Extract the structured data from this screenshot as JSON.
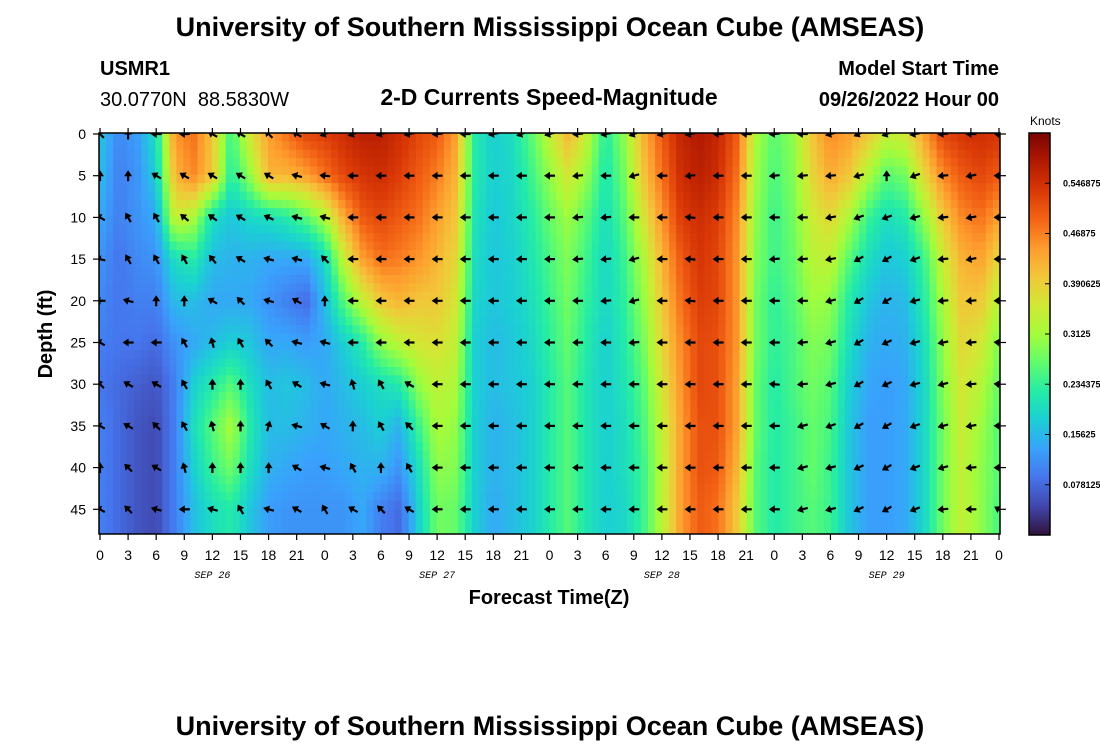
{
  "header": {
    "title": "University of Southern Mississippi Ocean Cube (AMSEAS)",
    "station_id": "USMR1",
    "station_coords": "30.0770N  88.5830W",
    "subtitle": "2-D Currents Speed-Magnitude",
    "model_start_label": "Model Start Time",
    "model_start_value": "09/26/2022 Hour 00"
  },
  "footer": {
    "title": "University of Southern Mississippi Ocean Cube (AMSEAS)"
  },
  "colors": {
    "palette": [
      "#30123b",
      "#4145ab",
      "#4675ed",
      "#39a2fc",
      "#1bcfd4",
      "#24eca6",
      "#61fc6c",
      "#a4fc3b",
      "#d1e834",
      "#f3c63a",
      "#fe9b2d",
      "#f36315",
      "#d93806",
      "#b11901",
      "#7a0402"
    ],
    "arrow": "#000000"
  },
  "chart_data": {
    "type": "heatmap",
    "subtype": "depth-time current speed section with direction vectors",
    "xlabel": "Forecast Time(Z)",
    "ylabel": "Depth (ft)",
    "x_range_hours": [
      0,
      96
    ],
    "x_ticks": [
      "0",
      "3",
      "6",
      "9",
      "12",
      "15",
      "18",
      "21",
      "0",
      "3",
      "6",
      "9",
      "12",
      "15",
      "18",
      "21",
      "0",
      "3",
      "6",
      "9",
      "12",
      "15",
      "18",
      "21",
      "0",
      "3",
      "6",
      "9",
      "12",
      "15",
      "18",
      "21",
      "0"
    ],
    "date_labels": [
      {
        "label": "SEP 26",
        "hour": 12
      },
      {
        "label": "SEP 27",
        "hour": 36
      },
      {
        "label": "SEP 28",
        "hour": 60
      },
      {
        "label": "SEP 29",
        "hour": 84
      }
    ],
    "y_ticks": [
      0,
      5,
      10,
      15,
      20,
      25,
      30,
      35,
      40,
      45
    ],
    "y_range_ft": [
      0,
      48
    ],
    "colorbar": {
      "unit": "Knots",
      "range": [
        0,
        0.625
      ],
      "tick_labels": [
        "0.546875",
        "0.46875",
        "0.390625",
        "0.3125",
        "0.234375",
        "0.15625",
        "0.078125"
      ],
      "tick_values": [
        0.546875,
        0.46875,
        0.390625,
        0.3125,
        0.234375,
        0.15625,
        0.078125
      ]
    },
    "field_hours": [
      0,
      2,
      4,
      6,
      8,
      10,
      12,
      14,
      16,
      18,
      20,
      22,
      24,
      26,
      28,
      30,
      32,
      34,
      36,
      38,
      40,
      42,
      44,
      46,
      48,
      50,
      52,
      54,
      56,
      58,
      60,
      62,
      64,
      66,
      68,
      70,
      72,
      74,
      76,
      78,
      80,
      82,
      84,
      86,
      88,
      90,
      92,
      94,
      96
    ],
    "field_depths_ft": [
      0,
      5,
      10,
      15,
      20,
      25,
      30,
      35,
      40,
      45,
      48
    ],
    "speed_knots_by_hour": [
      [
        0.17,
        0.16,
        0.14,
        0.12,
        0.11,
        0.1,
        0.09,
        0.1,
        0.1,
        0.1,
        0.1
      ],
      [
        0.11,
        0.1,
        0.1,
        0.09,
        0.09,
        0.09,
        0.08,
        0.08,
        0.08,
        0.08,
        0.08
      ],
      [
        0.13,
        0.12,
        0.12,
        0.11,
        0.1,
        0.09,
        0.07,
        0.06,
        0.06,
        0.06,
        0.06
      ],
      [
        0.2,
        0.18,
        0.14,
        0.12,
        0.1,
        0.08,
        0.06,
        0.05,
        0.05,
        0.05,
        0.05
      ],
      [
        0.45,
        0.42,
        0.35,
        0.2,
        0.16,
        0.12,
        0.1,
        0.1,
        0.1,
        0.1,
        0.1
      ],
      [
        0.48,
        0.46,
        0.32,
        0.22,
        0.16,
        0.14,
        0.18,
        0.2,
        0.18,
        0.16,
        0.16
      ],
      [
        0.4,
        0.4,
        0.2,
        0.16,
        0.14,
        0.16,
        0.22,
        0.26,
        0.24,
        0.2,
        0.2
      ],
      [
        0.24,
        0.22,
        0.17,
        0.15,
        0.14,
        0.18,
        0.26,
        0.32,
        0.28,
        0.22,
        0.22
      ],
      [
        0.36,
        0.3,
        0.19,
        0.15,
        0.14,
        0.17,
        0.2,
        0.22,
        0.2,
        0.17,
        0.17
      ],
      [
        0.44,
        0.42,
        0.2,
        0.14,
        0.12,
        0.14,
        0.16,
        0.16,
        0.15,
        0.13,
        0.13
      ],
      [
        0.48,
        0.42,
        0.22,
        0.14,
        0.1,
        0.14,
        0.17,
        0.16,
        0.14,
        0.12,
        0.12
      ],
      [
        0.52,
        0.44,
        0.26,
        0.14,
        0.08,
        0.13,
        0.16,
        0.15,
        0.13,
        0.12,
        0.12
      ],
      [
        0.53,
        0.48,
        0.32,
        0.19,
        0.16,
        0.14,
        0.14,
        0.14,
        0.13,
        0.12,
        0.12
      ],
      [
        0.55,
        0.52,
        0.43,
        0.34,
        0.26,
        0.18,
        0.16,
        0.15,
        0.14,
        0.12,
        0.12
      ],
      [
        0.57,
        0.54,
        0.5,
        0.44,
        0.34,
        0.22,
        0.18,
        0.16,
        0.15,
        0.14,
        0.14
      ],
      [
        0.57,
        0.55,
        0.52,
        0.48,
        0.4,
        0.3,
        0.2,
        0.18,
        0.15,
        0.1,
        0.1
      ],
      [
        0.55,
        0.53,
        0.5,
        0.47,
        0.42,
        0.34,
        0.22,
        0.15,
        0.12,
        0.08,
        0.08
      ],
      [
        0.52,
        0.5,
        0.48,
        0.45,
        0.4,
        0.36,
        0.3,
        0.24,
        0.2,
        0.18,
        0.18
      ],
      [
        0.5,
        0.47,
        0.44,
        0.42,
        0.4,
        0.37,
        0.34,
        0.32,
        0.3,
        0.28,
        0.28
      ],
      [
        0.44,
        0.42,
        0.4,
        0.38,
        0.36,
        0.34,
        0.32,
        0.3,
        0.29,
        0.27,
        0.27
      ],
      [
        0.22,
        0.22,
        0.21,
        0.2,
        0.19,
        0.18,
        0.18,
        0.18,
        0.18,
        0.18,
        0.18
      ],
      [
        0.18,
        0.18,
        0.17,
        0.17,
        0.17,
        0.16,
        0.16,
        0.15,
        0.15,
        0.14,
        0.14
      ],
      [
        0.2,
        0.19,
        0.19,
        0.18,
        0.18,
        0.17,
        0.17,
        0.16,
        0.16,
        0.16,
        0.16
      ],
      [
        0.26,
        0.24,
        0.22,
        0.21,
        0.2,
        0.19,
        0.18,
        0.18,
        0.18,
        0.18,
        0.18
      ],
      [
        0.34,
        0.3,
        0.27,
        0.25,
        0.24,
        0.23,
        0.22,
        0.22,
        0.22,
        0.22,
        0.22
      ],
      [
        0.42,
        0.36,
        0.31,
        0.29,
        0.28,
        0.27,
        0.26,
        0.26,
        0.26,
        0.26,
        0.26
      ],
      [
        0.34,
        0.3,
        0.26,
        0.24,
        0.23,
        0.22,
        0.21,
        0.21,
        0.21,
        0.21,
        0.21
      ],
      [
        0.22,
        0.21,
        0.2,
        0.19,
        0.19,
        0.18,
        0.18,
        0.18,
        0.18,
        0.18,
        0.18
      ],
      [
        0.3,
        0.28,
        0.26,
        0.24,
        0.23,
        0.22,
        0.21,
        0.2,
        0.2,
        0.19,
        0.19
      ],
      [
        0.42,
        0.4,
        0.36,
        0.32,
        0.3,
        0.28,
        0.26,
        0.25,
        0.24,
        0.24,
        0.24
      ],
      [
        0.5,
        0.48,
        0.45,
        0.42,
        0.4,
        0.38,
        0.36,
        0.34,
        0.33,
        0.33,
        0.33
      ],
      [
        0.56,
        0.55,
        0.53,
        0.5,
        0.48,
        0.46,
        0.45,
        0.44,
        0.44,
        0.44,
        0.44
      ],
      [
        0.58,
        0.57,
        0.55,
        0.54,
        0.53,
        0.52,
        0.52,
        0.51,
        0.51,
        0.5,
        0.5
      ],
      [
        0.56,
        0.55,
        0.53,
        0.52,
        0.52,
        0.51,
        0.51,
        0.51,
        0.5,
        0.48,
        0.48
      ],
      [
        0.5,
        0.48,
        0.46,
        0.45,
        0.45,
        0.45,
        0.44,
        0.44,
        0.42,
        0.4,
        0.4
      ],
      [
        0.32,
        0.31,
        0.3,
        0.29,
        0.28,
        0.28,
        0.27,
        0.27,
        0.26,
        0.26,
        0.26
      ],
      [
        0.26,
        0.25,
        0.24,
        0.24,
        0.23,
        0.23,
        0.22,
        0.22,
        0.22,
        0.22,
        0.22
      ],
      [
        0.3,
        0.29,
        0.28,
        0.27,
        0.26,
        0.25,
        0.25,
        0.24,
        0.24,
        0.24,
        0.24
      ],
      [
        0.4,
        0.38,
        0.35,
        0.33,
        0.31,
        0.29,
        0.28,
        0.27,
        0.27,
        0.26,
        0.26
      ],
      [
        0.46,
        0.43,
        0.38,
        0.34,
        0.3,
        0.28,
        0.26,
        0.25,
        0.24,
        0.24,
        0.24
      ],
      [
        0.44,
        0.4,
        0.32,
        0.26,
        0.22,
        0.2,
        0.18,
        0.17,
        0.17,
        0.17,
        0.17
      ],
      [
        0.4,
        0.32,
        0.24,
        0.2,
        0.17,
        0.15,
        0.14,
        0.13,
        0.13,
        0.13,
        0.13
      ],
      [
        0.34,
        0.26,
        0.2,
        0.17,
        0.15,
        0.14,
        0.13,
        0.13,
        0.13,
        0.13,
        0.13
      ],
      [
        0.36,
        0.28,
        0.22,
        0.18,
        0.16,
        0.15,
        0.14,
        0.14,
        0.14,
        0.14,
        0.14
      ],
      [
        0.44,
        0.38,
        0.3,
        0.24,
        0.22,
        0.2,
        0.19,
        0.19,
        0.19,
        0.19,
        0.19
      ],
      [
        0.52,
        0.46,
        0.4,
        0.35,
        0.32,
        0.3,
        0.29,
        0.28,
        0.28,
        0.28,
        0.28
      ],
      [
        0.54,
        0.5,
        0.46,
        0.42,
        0.4,
        0.38,
        0.36,
        0.35,
        0.34,
        0.34,
        0.34
      ],
      [
        0.55,
        0.52,
        0.48,
        0.44,
        0.4,
        0.36,
        0.33,
        0.31,
        0.3,
        0.3,
        0.3
      ],
      [
        0.54,
        0.5,
        0.44,
        0.38,
        0.33,
        0.29,
        0.27,
        0.26,
        0.26,
        0.25,
        0.25
      ]
    ],
    "vectors": {
      "hours": [
        0,
        3,
        6,
        9,
        12,
        15,
        18,
        21,
        24,
        27,
        30,
        33,
        36,
        39,
        42,
        45,
        48,
        51,
        54,
        57,
        60,
        63,
        66,
        69,
        72,
        75,
        78,
        81,
        84,
        87,
        90,
        93,
        96
      ],
      "depths_ft": [
        0,
        5,
        10,
        15,
        20,
        25,
        30,
        35,
        40,
        45
      ],
      "direction_deg_by_depth": [
        [
          315,
          0,
          270,
          270,
          300,
          300,
          315,
          300,
          250,
          250,
          255,
          260,
          265,
          270,
          260,
          250,
          255,
          265,
          260,
          250,
          255,
          260,
          270,
          270,
          265,
          270,
          255,
          245,
          250,
          260,
          265,
          270,
          275
        ],
        [
          0,
          0,
          300,
          300,
          300,
          300,
          300,
          285,
          275,
          270,
          270,
          270,
          270,
          270,
          270,
          270,
          270,
          265,
          270,
          255,
          270,
          265,
          270,
          270,
          265,
          265,
          265,
          255,
          0,
          250,
          265,
          260,
          270
        ],
        [
          300,
          330,
          330,
          310,
          305,
          300,
          295,
          285,
          285,
          270,
          270,
          270,
          270,
          270,
          270,
          270,
          270,
          265,
          265,
          270,
          270,
          275,
          270,
          270,
          270,
          270,
          260,
          250,
          250,
          255,
          265,
          260,
          270
        ],
        [
          285,
          330,
          330,
          330,
          320,
          300,
          285,
          285,
          315,
          270,
          270,
          270,
          270,
          270,
          270,
          270,
          270,
          265,
          265,
          255,
          270,
          275,
          270,
          270,
          265,
          265,
          260,
          240,
          240,
          250,
          265,
          260,
          270
        ],
        [
          270,
          285,
          0,
          0,
          300,
          315,
          285,
          300,
          0,
          270,
          270,
          270,
          270,
          270,
          270,
          270,
          270,
          270,
          265,
          255,
          270,
          275,
          270,
          270,
          270,
          270,
          255,
          240,
          240,
          255,
          265,
          265,
          270
        ],
        [
          300,
          270,
          270,
          330,
          345,
          330,
          315,
          285,
          285,
          270,
          270,
          270,
          270,
          270,
          270,
          270,
          270,
          270,
          270,
          265,
          270,
          270,
          270,
          270,
          270,
          265,
          255,
          240,
          245,
          255,
          260,
          265,
          275
        ],
        [
          315,
          300,
          300,
          330,
          0,
          0,
          330,
          300,
          285,
          345,
          330,
          300,
          270,
          270,
          270,
          270,
          270,
          270,
          270,
          270,
          270,
          270,
          270,
          270,
          275,
          265,
          255,
          240,
          245,
          255,
          255,
          265,
          275
        ],
        [
          300,
          300,
          315,
          330,
          345,
          0,
          15,
          285,
          300,
          0,
          330,
          315,
          270,
          270,
          270,
          270,
          270,
          270,
          270,
          270,
          270,
          270,
          270,
          270,
          270,
          255,
          250,
          240,
          240,
          250,
          255,
          260,
          270
        ],
        [
          0,
          315,
          300,
          345,
          0,
          0,
          0,
          300,
          285,
          330,
          0,
          330,
          270,
          270,
          270,
          270,
          270,
          270,
          270,
          270,
          270,
          270,
          270,
          270,
          270,
          255,
          255,
          245,
          240,
          250,
          255,
          265,
          270
        ],
        [
          300,
          315,
          285,
          270,
          285,
          330,
          285,
          300,
          330,
          300,
          315,
          300,
          270,
          270,
          270,
          270,
          270,
          270,
          270,
          270,
          270,
          270,
          270,
          270,
          270,
          255,
          255,
          245,
          240,
          250,
          265,
          270,
          300
        ]
      ]
    }
  }
}
